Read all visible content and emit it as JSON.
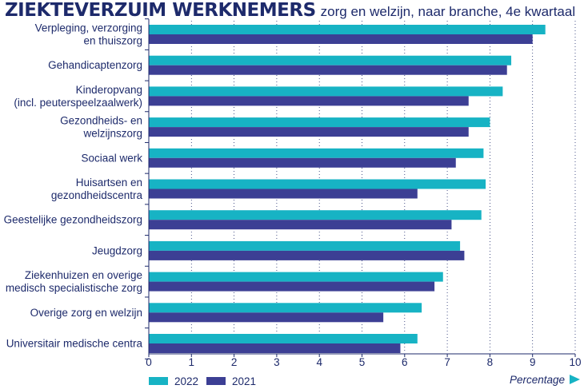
{
  "title": "ZIEKTEVERZUIM WERKNEMERS",
  "subtitle": "zorg en welzijn, naar branche, 4e kwartaal",
  "colors": {
    "series_2022": "#17b3c4",
    "series_2021": "#3c3f94",
    "text": "#1d2a6b",
    "grid": "#1d2a6b"
  },
  "chart_data": {
    "type": "bar",
    "orientation": "horizontal",
    "title": "ZIEKTEVERZUIM WERKNEMERS",
    "subtitle": "zorg en welzijn, naar branche, 4e kwartaal",
    "xlabel": "Percentage",
    "xlim": [
      0,
      10
    ],
    "xticks": [
      "0",
      "1",
      "2",
      "3",
      "4",
      "5",
      "6",
      "7",
      "8",
      "9",
      "10"
    ],
    "legend_position": "bottom-left",
    "categories": [
      [
        "Verpleging, verzorging",
        "en thuiszorg"
      ],
      [
        "Gehandicaptenzorg"
      ],
      [
        "Kinderopvang",
        "(incl. peuterspeelzaalwerk)"
      ],
      [
        "Gezondheids- en",
        "welzijnszorg"
      ],
      [
        "Sociaal werk"
      ],
      [
        "Huisartsen en",
        "gezondheidscentra"
      ],
      [
        "Geestelijke gezondheidszorg"
      ],
      [
        "Jeugdzorg"
      ],
      [
        "Ziekenhuizen en overige",
        "medisch specialistische zorg"
      ],
      [
        "Overige zorg en welzijn"
      ],
      [
        "Universitair medische centra"
      ]
    ],
    "series": [
      {
        "name": "2022",
        "values": [
          9.3,
          8.5,
          8.3,
          8.0,
          7.85,
          7.9,
          7.8,
          7.3,
          6.9,
          6.4,
          6.3
        ]
      },
      {
        "name": "2021",
        "values": [
          9.0,
          8.4,
          7.5,
          7.5,
          7.2,
          6.3,
          7.1,
          7.4,
          6.7,
          5.5,
          5.9
        ]
      }
    ]
  }
}
